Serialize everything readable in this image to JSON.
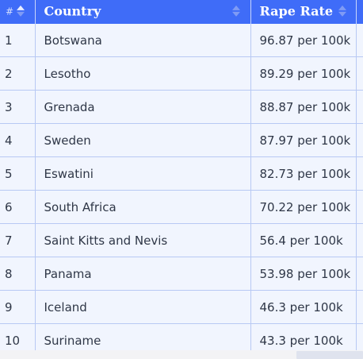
{
  "table": {
    "headers": {
      "rank": "#",
      "country": "Country",
      "rate": "Rape Rate"
    },
    "rows": [
      {
        "rank": "1",
        "country": "Botswana",
        "rate": "96.87 per 100k"
      },
      {
        "rank": "2",
        "country": "Lesotho",
        "rate": "89.29 per 100k"
      },
      {
        "rank": "3",
        "country": "Grenada",
        "rate": "88.87 per 100k"
      },
      {
        "rank": "4",
        "country": "Sweden",
        "rate": "87.97 per 100k"
      },
      {
        "rank": "5",
        "country": "Eswatini",
        "rate": "82.73 per 100k"
      },
      {
        "rank": "6",
        "country": "South Africa",
        "rate": "70.22 per 100k"
      },
      {
        "rank": "7",
        "country": "Saint Kitts and Nevis",
        "rate": "56.4 per 100k"
      },
      {
        "rank": "8",
        "country": "Panama",
        "rate": "53.98 per 100k"
      },
      {
        "rank": "9",
        "country": "Iceland",
        "rate": "46.3 per 100k"
      },
      {
        "rank": "10",
        "country": "Suriname",
        "rate": "43.3 per 100k"
      }
    ]
  },
  "icons": {
    "sort": "sort-icon",
    "sort_ascending": "sort-ascending-icon"
  },
  "colors": {
    "header_bg": "#3f6cf8",
    "row_bg": "#f1f5fe",
    "grid_line": "#b8c9f4",
    "text": "#2f3747"
  }
}
